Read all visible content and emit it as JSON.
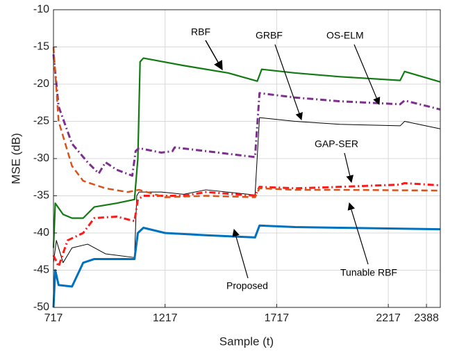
{
  "chart_data": {
    "type": "line",
    "xlabel": "Sample (t)",
    "ylabel": "MSE (dB)",
    "xlim": [
      717,
      2450
    ],
    "ylim": [
      -50,
      -10
    ],
    "xticks": [
      717,
      1217,
      1717,
      2217,
      2388
    ],
    "yticks": [
      -10,
      -15,
      -20,
      -25,
      -30,
      -35,
      -40,
      -45,
      -50
    ],
    "grid": true,
    "annotations": [
      "RBF",
      "GRBF",
      "OS-ELM",
      "GAP-SER",
      "Tunable RBF",
      "Proposed"
    ],
    "series": [
      {
        "name": "RBF",
        "color": "#117a11",
        "style": "solid",
        "x": [
          717,
          725,
          760,
          800,
          850,
          900,
          1000,
          1080,
          1095,
          1105,
          1120,
          1300,
          1500,
          1630,
          1650,
          1800,
          2000,
          2270,
          2290,
          2450
        ],
        "values": [
          -42,
          -36,
          -37.5,
          -38,
          -38,
          -36.5,
          -36,
          -35.5,
          -30,
          -17,
          -16.5,
          -17.5,
          -18.5,
          -19.6,
          -18,
          -18.5,
          -19,
          -19.5,
          -18.3,
          -19.7
        ]
      },
      {
        "name": "OS-ELM",
        "color": "#7e2f8e",
        "style": "dashdot",
        "x": [
          717,
          740,
          800,
          870,
          920,
          950,
          1000,
          1070,
          1085,
          1100,
          1200,
          1250,
          1260,
          1400,
          1620,
          1640,
          1800,
          2000,
          2270,
          2290,
          2450
        ],
        "values": [
          -16,
          -23,
          -28,
          -30.5,
          -32,
          -30.5,
          -31.5,
          -32.3,
          -29,
          -28.6,
          -29.2,
          -29,
          -28.5,
          -29,
          -29.8,
          -21.2,
          -21.8,
          -22.3,
          -22.7,
          -22.2,
          -23.4
        ]
      },
      {
        "name": "GRBF",
        "color": "#000000",
        "style": "thin",
        "x": [
          717,
          730,
          760,
          800,
          870,
          950,
          1080,
          1090,
          1100,
          1200,
          1300,
          1400,
          1620,
          1640,
          1800,
          2000,
          2270,
          2290,
          2450
        ],
        "values": [
          -44,
          -41,
          -44,
          -42,
          -41.5,
          -42.8,
          -43.3,
          -35,
          -34.5,
          -34.5,
          -34.8,
          -34.2,
          -34.9,
          -24.5,
          -25,
          -25.4,
          -25.6,
          -25,
          -26
        ]
      },
      {
        "name": "GAP-SER",
        "color": "#ff1a1a",
        "style": "dashdot",
        "x": [
          717,
          740,
          780,
          850,
          900,
          1000,
          1080,
          1095,
          1120,
          1300,
          1400,
          1620,
          1640,
          1800,
          2000,
          2270,
          2290,
          2450
        ],
        "values": [
          -43,
          -44.5,
          -41,
          -40,
          -38,
          -37.8,
          -38.4,
          -35.5,
          -35,
          -35,
          -34.5,
          -35,
          -33.8,
          -34,
          -33.8,
          -33.5,
          -33.3,
          -33.6
        ]
      },
      {
        "name": "Tunable RBF",
        "color": "#d95319",
        "style": "dashed",
        "x": [
          717,
          740,
          800,
          850,
          950,
          1050,
          1100,
          1217,
          1400,
          1620,
          1640,
          1800,
          2000,
          2450
        ],
        "values": [
          -15,
          -25,
          -31,
          -33,
          -34,
          -34.5,
          -34.2,
          -35.2,
          -35,
          -35.2,
          -34,
          -34.2,
          -34.2,
          -34.3
        ]
      },
      {
        "name": "Proposed",
        "color": "#0072bd",
        "style": "thick",
        "x": [
          717,
          725,
          740,
          800,
          850,
          900,
          1080,
          1095,
          1120,
          1217,
          1400,
          1620,
          1640,
          1800,
          2000,
          2450
        ],
        "values": [
          -50,
          -45,
          -47,
          -47.2,
          -44,
          -43.5,
          -43.5,
          -40,
          -39.3,
          -40,
          -40.3,
          -40.6,
          -39,
          -39.2,
          -39.3,
          -39.5
        ]
      }
    ]
  }
}
